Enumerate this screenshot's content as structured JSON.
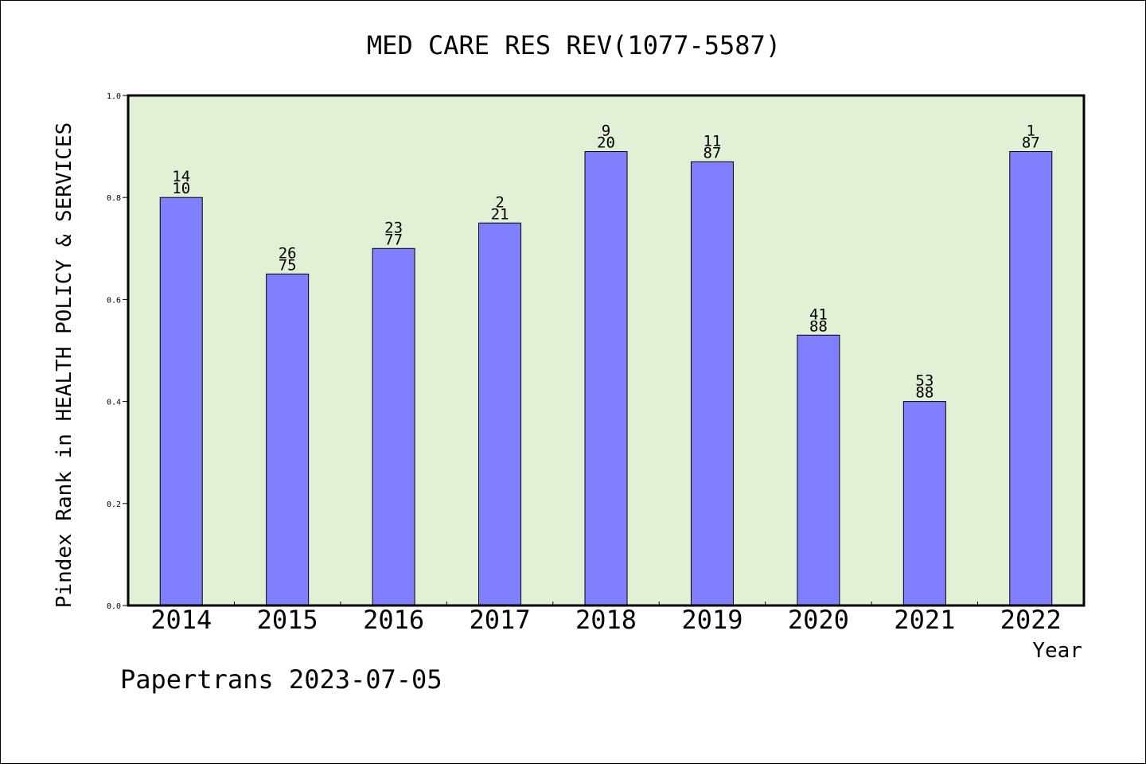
{
  "chart_data": {
    "type": "bar",
    "title": "MED CARE RES REV(1077-5587)",
    "ylabel": "Pindex Rank in HEALTH POLICY & SERVICES",
    "xlabel": "Year",
    "categories": [
      "2014",
      "2015",
      "2016",
      "2017",
      "2018",
      "2019",
      "2020",
      "2021",
      "2022"
    ],
    "values": [
      0.8,
      0.65,
      0.7,
      0.75,
      0.89,
      0.87,
      0.53,
      0.4,
      0.89
    ],
    "labels_top": [
      "14",
      "26",
      "23",
      "2",
      "9",
      "11",
      "41",
      "53",
      "1"
    ],
    "labels_bottom": [
      "10",
      "75",
      "77",
      "21",
      "20",
      "87",
      "88",
      "88",
      "87"
    ],
    "ylim": [
      0,
      1.0
    ],
    "yticks": [
      "0.0",
      "0.2",
      "0.4",
      "0.6",
      "0.8",
      "1.0"
    ],
    "bar_color": "#8080ff",
    "plot_background": "#e2f0d6",
    "grid": false
  },
  "footer": "Papertrans 2023-07-05"
}
